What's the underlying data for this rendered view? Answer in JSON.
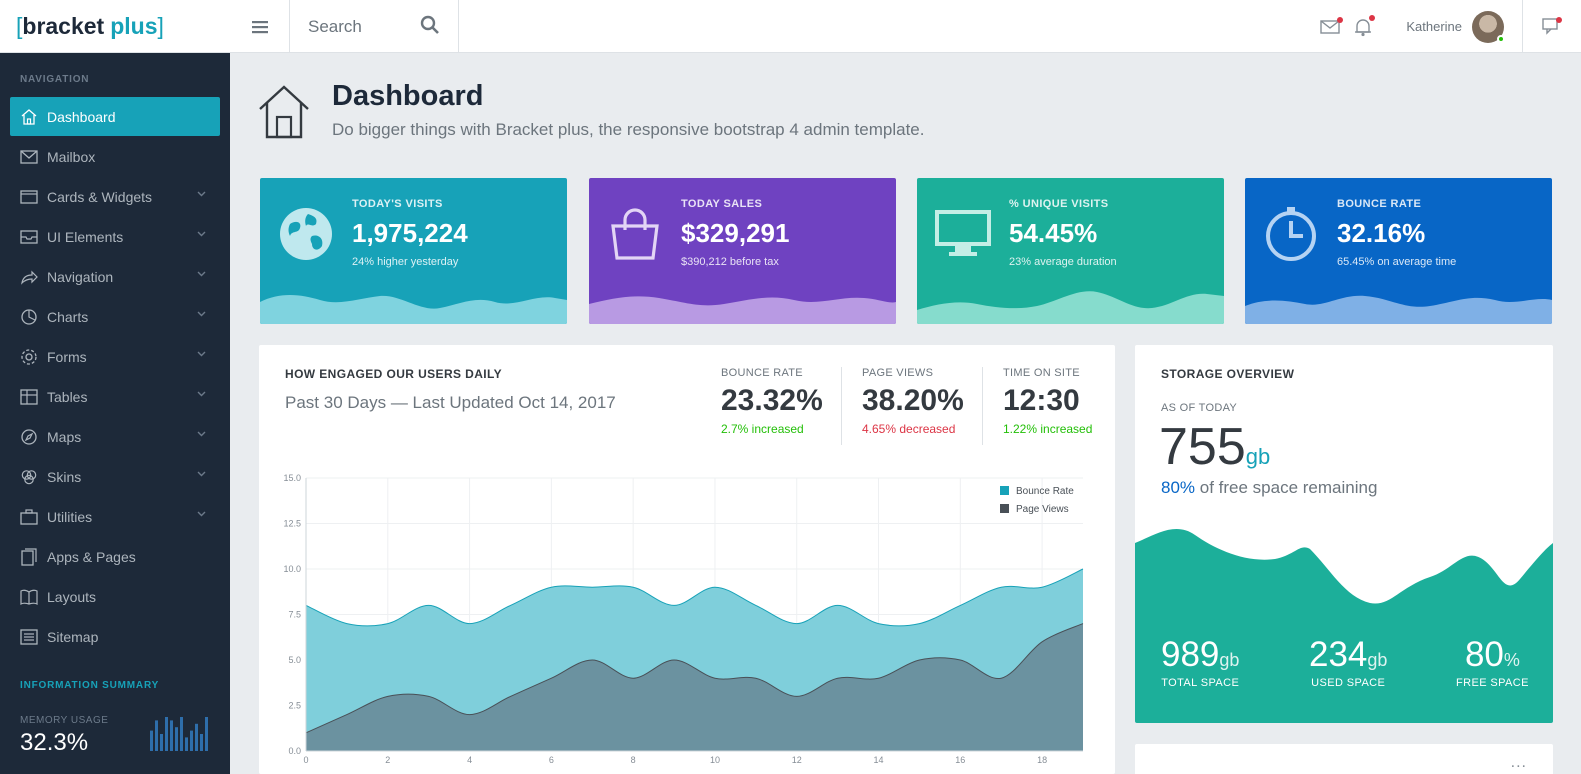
{
  "logo": {
    "bracket_open": "[",
    "word1": "bracket",
    "word2": "plus",
    "bracket_close": "]"
  },
  "header": {
    "search_placeholder": "Search",
    "username": "Katherine"
  },
  "sidebar": {
    "section_label": "NAVIGATION",
    "items": [
      {
        "label": "Dashboard",
        "icon": "home-icon",
        "active": true,
        "has_children": false
      },
      {
        "label": "Mailbox",
        "icon": "mail-icon",
        "active": false,
        "has_children": false
      },
      {
        "label": "Cards & Widgets",
        "icon": "cards-icon",
        "active": false,
        "has_children": true
      },
      {
        "label": "UI Elements",
        "icon": "inbox-icon",
        "active": false,
        "has_children": true
      },
      {
        "label": "Navigation",
        "icon": "share-icon",
        "active": false,
        "has_children": true
      },
      {
        "label": "Charts",
        "icon": "pie-chart-icon",
        "active": false,
        "has_children": true
      },
      {
        "label": "Forms",
        "icon": "gear-icon",
        "active": false,
        "has_children": true
      },
      {
        "label": "Tables",
        "icon": "table-icon",
        "active": false,
        "has_children": true
      },
      {
        "label": "Maps",
        "icon": "compass-icon",
        "active": false,
        "has_children": true
      },
      {
        "label": "Skins",
        "icon": "palette-icon",
        "active": false,
        "has_children": true
      },
      {
        "label": "Utilities",
        "icon": "briefcase-icon",
        "active": false,
        "has_children": true
      },
      {
        "label": "Apps & Pages",
        "icon": "docs-icon",
        "active": false,
        "has_children": false
      },
      {
        "label": "Layouts",
        "icon": "book-icon",
        "active": false,
        "has_children": false
      },
      {
        "label": "Sitemap",
        "icon": "list-icon",
        "active": false,
        "has_children": false
      }
    ],
    "info_label": "INFORMATION SUMMARY",
    "memory_label": "MEMORY USAGE",
    "memory_value": "32.3%",
    "memory_bars": [
      6,
      9,
      5,
      10,
      9,
      7,
      10,
      4,
      6,
      8,
      5,
      10
    ]
  },
  "page": {
    "title": "Dashboard",
    "subtitle": "Do bigger things with Bracket plus, the responsive bootstrap 4 admin template."
  },
  "cards": [
    {
      "label": "TODAY'S VISITS",
      "value": "1,975,224",
      "sub": "24% higher yesterday",
      "icon": "globe-icon",
      "color": "#17a2b8",
      "wave_color": "#7fd3df"
    },
    {
      "label": "TODAY SALES",
      "value": "$329,291",
      "sub": "$390,212 before tax",
      "icon": "shopping-bag-icon",
      "color": "#6f42c1",
      "wave_color": "#b89ae3"
    },
    {
      "label": "% UNIQUE VISITS",
      "value": "54.45%",
      "sub": "23% average duration",
      "icon": "monitor-icon",
      "color": "#1caf9a",
      "wave_color": "#86dccd"
    },
    {
      "label": "BOUNCE RATE",
      "value": "32.16%",
      "sub": "65.45% on average time",
      "icon": "clock-icon",
      "color": "#0866c6",
      "wave_color": "#7fb0e6"
    }
  ],
  "engagement": {
    "title": "HOW ENGAGED OUR USERS DAILY",
    "subtitle": "Past 30 Days — Last Updated Oct 14, 2017",
    "metrics": [
      {
        "label": "BOUNCE RATE",
        "value": "23.32%",
        "change": "2.7% increased",
        "trend": "up"
      },
      {
        "label": "PAGE VIEWS",
        "value": "38.20%",
        "change": "4.65% decreased",
        "trend": "down"
      },
      {
        "label": "TIME ON SITE",
        "value": "12:30",
        "change": "1.22% increased",
        "trend": "up"
      }
    ]
  },
  "chart_data": {
    "type": "area",
    "title": "",
    "xlabel": "",
    "ylabel": "",
    "x": [
      0,
      1,
      2,
      3,
      4,
      5,
      6,
      7,
      8,
      9,
      10,
      11,
      12,
      13,
      14,
      15,
      16,
      17,
      18,
      19
    ],
    "xlim": [
      0,
      19
    ],
    "ylim": [
      0,
      15
    ],
    "xticks": [
      "0",
      "2",
      "4",
      "6",
      "8",
      "10",
      "12",
      "14",
      "16",
      "18"
    ],
    "yticks": [
      "0.0",
      "2.5",
      "5.0",
      "7.5",
      "10.0",
      "12.5",
      "15.0"
    ],
    "series": [
      {
        "name": "Bounce Rate",
        "color": "#17a2b8",
        "fill": "#7fcfdb",
        "values": [
          8,
          7,
          7,
          8,
          7,
          8,
          9,
          9,
          9,
          8,
          9,
          8,
          7,
          8,
          7,
          7,
          8,
          9,
          9,
          10
        ]
      },
      {
        "name": "Page Views",
        "color": "#495057",
        "fill": "#6b92a0",
        "values": [
          1,
          2,
          3,
          3,
          2,
          3,
          4,
          5,
          4,
          5,
          4,
          4,
          3,
          4,
          4,
          5,
          5,
          4,
          6,
          7
        ]
      }
    ],
    "legend": "top-right",
    "grid": true
  },
  "storage": {
    "title": "STORAGE OVERVIEW",
    "as_of": "AS OF TODAY",
    "value": "755",
    "unit": "gb",
    "free_pct": "80%",
    "free_text": "of free space remaining",
    "stats": [
      {
        "value": "989",
        "unit": "gb",
        "label": "TOTAL SPACE"
      },
      {
        "value": "234",
        "unit": "gb",
        "label": "USED SPACE"
      },
      {
        "value": "80",
        "unit": "%",
        "label": "FREE SPACE"
      }
    ],
    "wave_color": "#1caf9a"
  },
  "second_panel": {
    "menu": "..."
  }
}
